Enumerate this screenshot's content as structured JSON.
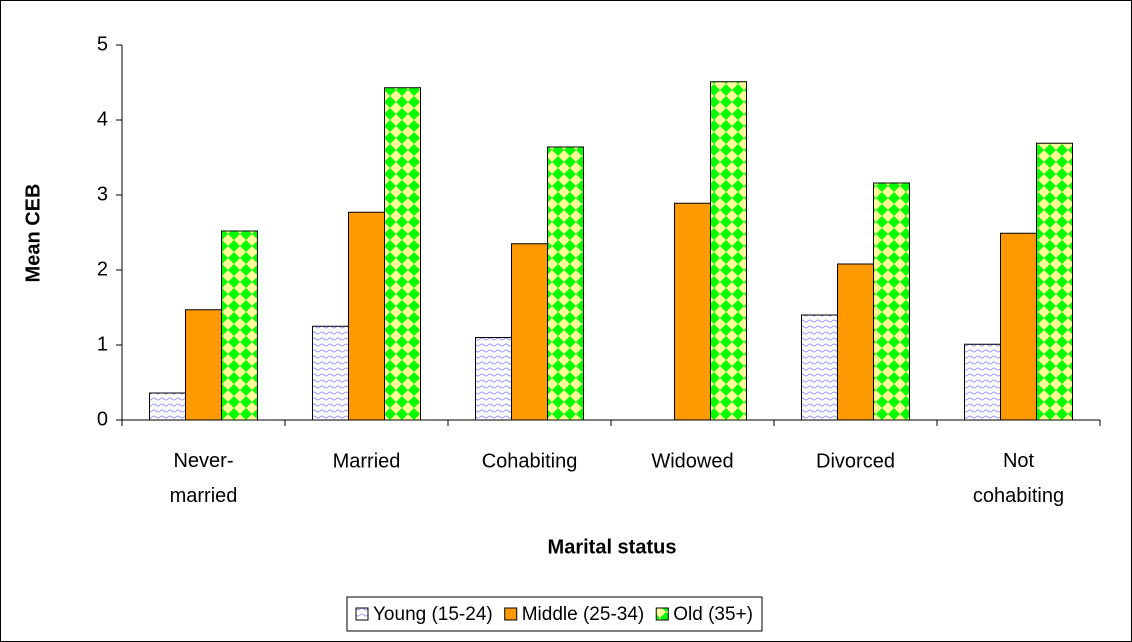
{
  "chart_data": {
    "type": "bar",
    "x_label": "Marital status",
    "y_label": "Mean CEB",
    "categories": [
      "Never-married",
      "Married",
      "Cohabiting",
      "Widowed",
      "Divorced",
      "Not cohabiting"
    ],
    "series": [
      {
        "name": "Young (15-24)",
        "color": "#9999ff",
        "pattern": "wave",
        "values": [
          0.36,
          1.25,
          1.1,
          null,
          1.4,
          1.01
        ]
      },
      {
        "name": "Middle (25-34)",
        "color": "#ff9900",
        "pattern": "solid",
        "values": [
          1.47,
          2.77,
          2.35,
          2.89,
          2.08,
          2.49
        ]
      },
      {
        "name": "Old (35+)",
        "color": "#00ff00",
        "pattern": "diamond",
        "values": [
          2.52,
          4.43,
          3.64,
          4.51,
          3.16,
          3.69
        ]
      }
    ],
    "ylim": [
      0,
      5
    ],
    "yticks": [
      0,
      1,
      2,
      3,
      4,
      5
    ],
    "grid": false,
    "legend": "bottom"
  }
}
